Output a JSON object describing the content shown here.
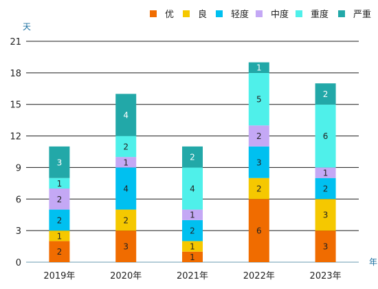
{
  "chart_data": {
    "type": "bar",
    "stacked": true,
    "categories": [
      "2019年",
      "2020年",
      "2021年",
      "2022年",
      "2023年"
    ],
    "series": [
      {
        "name": "优",
        "color": "#F06C00",
        "values": [
          2,
          3,
          1,
          6,
          3
        ]
      },
      {
        "name": "良",
        "color": "#F5C800",
        "values": [
          1,
          2,
          1,
          2,
          3
        ]
      },
      {
        "name": "轻度",
        "color": "#00C0F0",
        "values": [
          2,
          4,
          2,
          3,
          2
        ]
      },
      {
        "name": "中度",
        "color": "#C4A8F5",
        "values": [
          2,
          1,
          1,
          2,
          1
        ]
      },
      {
        "name": "重度",
        "color": "#4FF0EA",
        "values": [
          1,
          2,
          4,
          5,
          6
        ]
      },
      {
        "name": "严重",
        "color": "#22A8A8",
        "values": [
          3,
          4,
          2,
          1,
          2
        ]
      }
    ],
    "ylabel": "天",
    "xlabel": "年",
    "ylim": [
      0,
      21
    ],
    "yticks": [
      0,
      3,
      6,
      9,
      12,
      15,
      18,
      21
    ],
    "grid": true,
    "legend_position": "top-right",
    "colors": {
      "grid": "#1a1a1a",
      "axis_label": "#1a6fa0",
      "tick_label": "#222222",
      "data_label": "#222222",
      "data_label_on_dark": "#ffffff"
    }
  }
}
